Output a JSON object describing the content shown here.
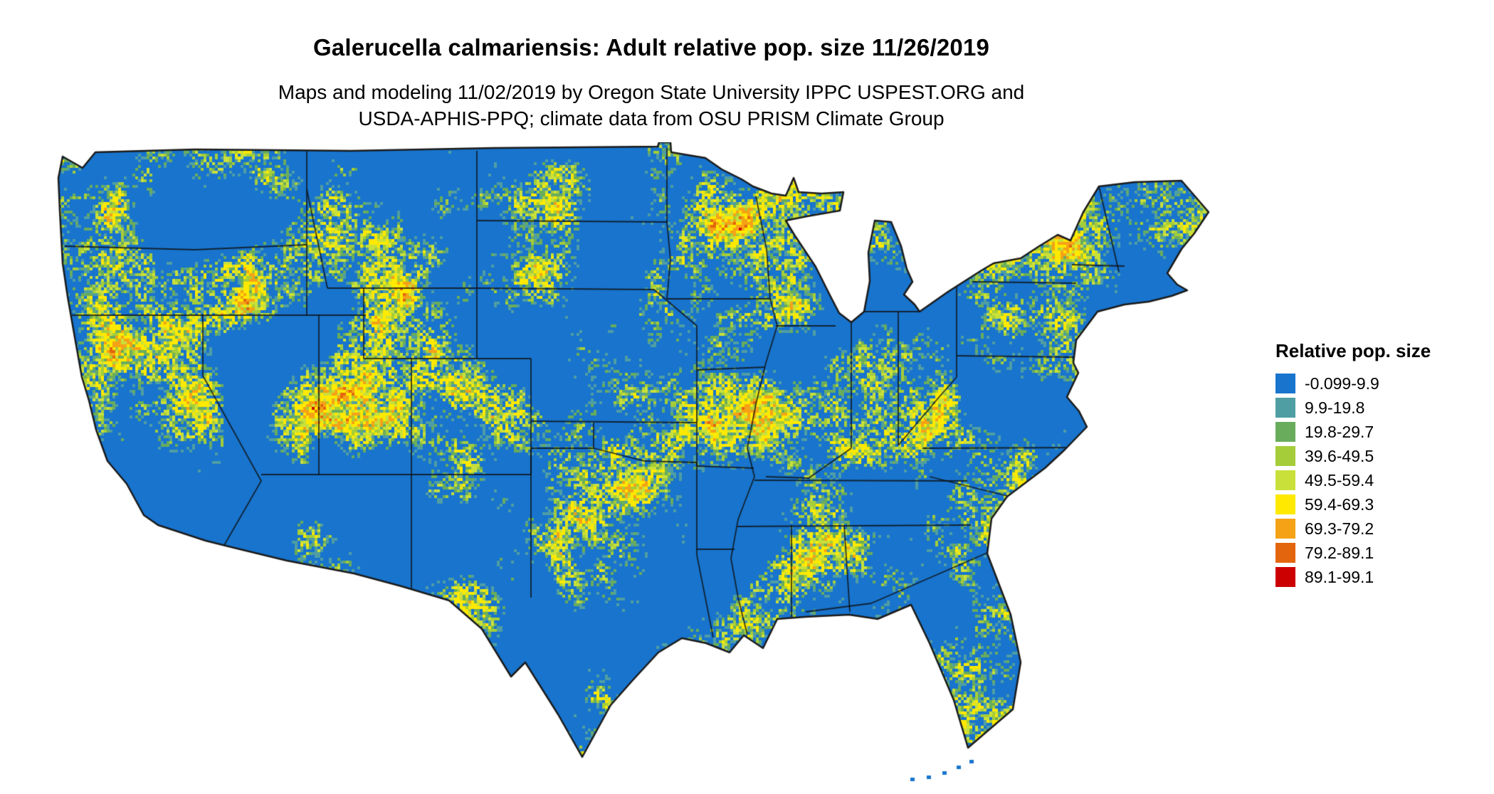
{
  "title": "Galerucella calmariensis: Adult relative pop. size 11/26/2019",
  "subtitle": {
    "line1": "Maps and modeling 11/02/2019 by Oregon State University IPPC USPEST.ORG and",
    "line2": "USDA-APHIS-PPQ; climate data from OSU PRISM Climate Group"
  },
  "legend": {
    "title": "Relative pop. size",
    "bins": [
      {
        "label": "-0.099-9.9",
        "color": "#1874CD"
      },
      {
        "label": "9.9-19.8",
        "color": "#4F9EA3"
      },
      {
        "label": "19.8-29.7",
        "color": "#69AC5C"
      },
      {
        "label": "39.6-49.5",
        "color": "#A5CD39"
      },
      {
        "label": "49.5-59.4",
        "color": "#C9E03B"
      },
      {
        "label": "59.4-69.3",
        "color": "#FFE900"
      },
      {
        "label": "69.3-79.2",
        "color": "#F5A216"
      },
      {
        "label": "79.2-89.1",
        "color": "#E3650D"
      },
      {
        "label": "89.1-99.1",
        "color": "#CC0000"
      }
    ]
  },
  "map": {
    "region_label": "conterminous-united-states",
    "base_color": "#1874CD",
    "boundary_color": "#1a1a1a",
    "background_color": "#FFFFFF"
  }
}
